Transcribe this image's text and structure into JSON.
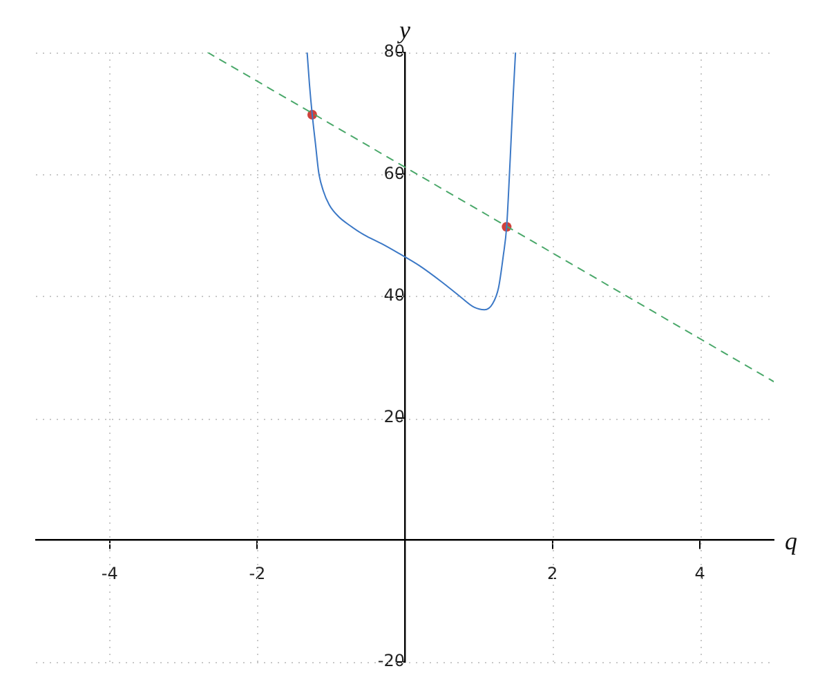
{
  "chart_data": {
    "type": "line",
    "xlabel": "q",
    "ylabel": "y",
    "xlim": [
      -5,
      5
    ],
    "ylim": [
      -20,
      80
    ],
    "xticks": [
      -4,
      -2,
      2,
      4
    ],
    "yticks": [
      -20,
      20,
      40,
      60,
      80
    ],
    "grid": true,
    "series": [
      {
        "color": "#3b78c6",
        "marker": "none",
        "x": [
          -1.324,
          -1.292,
          -1.255,
          -1.21,
          -1.167,
          -1.105,
          -1.024,
          -0.9,
          -0.743,
          -0.556,
          -0.31,
          -0.09,
          0.2,
          0.506,
          0.755,
          0.94,
          1.08,
          1.19,
          1.27,
          1.335,
          1.38,
          1.41,
          1.44,
          1.47,
          1.5
        ],
        "values": [
          80,
          74.7,
          69.8,
          64.9,
          60.3,
          57.3,
          55,
          53.1,
          51.6,
          50.1,
          48.6,
          47.1,
          45,
          42.3,
          39.9,
          38.2,
          37.8,
          38.8,
          41.4,
          46.7,
          51.4,
          58,
          65.6,
          73.2,
          80
        ]
      },
      {
        "color": "#4aa86a",
        "marker": "none",
        "line_style": "dashed",
        "x": [
          -2.67,
          5
        ],
        "values": [
          80,
          26
        ]
      },
      {
        "type": "scatter",
        "color": "#d0413b",
        "marker": "circle",
        "x": [
          -1.255,
          1.38
        ],
        "values": [
          69.8,
          51.4
        ]
      }
    ]
  }
}
